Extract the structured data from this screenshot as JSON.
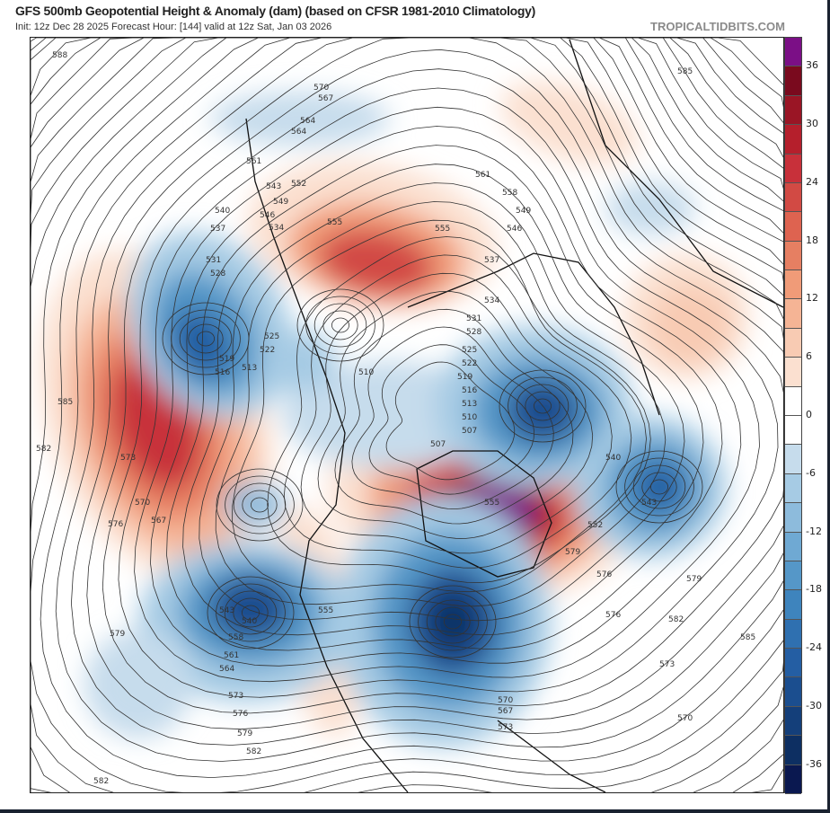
{
  "header": {
    "title": "GFS 500mb Geopotential Height & Anomaly (dam) (based on CFSR 1981-2010 Climatology)",
    "subtitle": "Init: 12z Dec 28 2025   Forecast Hour: [144]   valid at 12z Sat, Jan 03 2026",
    "brand": "TROPICALTIDBITS.COM"
  },
  "colorbar": {
    "labels": [
      "36",
      "30",
      "24",
      "18",
      "12",
      "6",
      "0",
      "-6",
      "-12",
      "-18",
      "-24",
      "-30",
      "-36"
    ],
    "colors": [
      "#7b0f86",
      "#7a0a1e",
      "#9a1525",
      "#b51f2c",
      "#c8303a",
      "#d24a44",
      "#de6350",
      "#e67f62",
      "#f09b78",
      "#f5b495",
      "#f8cbb3",
      "#fbe0d0",
      "#ffffff",
      "#ffffff",
      "#c6dcec",
      "#a6cbe4",
      "#8dbbdc",
      "#6fa9d3",
      "#5597c8",
      "#3e84bd",
      "#2f70b0",
      "#245ea3",
      "#1b4e8f",
      "#143f7a",
      "#0d2f62",
      "#0a1850"
    ]
  },
  "map": {
    "contour_labels": [
      "588",
      "585",
      "582",
      "576",
      "579",
      "573",
      "570",
      "567",
      "564",
      "561",
      "555",
      "552",
      "549",
      "546",
      "543",
      "540",
      "537",
      "534",
      "531",
      "528",
      "525",
      "522",
      "519",
      "516",
      "513",
      "510",
      "507",
      "540",
      "543",
      "555",
      "558",
      "561",
      "564",
      "573",
      "576",
      "579",
      "582",
      "585",
      "570",
      "567",
      "564",
      "561",
      "558",
      "555",
      "549",
      "546",
      "537",
      "534",
      "531",
      "528",
      "525",
      "522",
      "519",
      "516",
      "513",
      "510",
      "507",
      "552",
      "540",
      "543",
      "555",
      "567",
      "570",
      "573",
      "576",
      "579",
      "582",
      "585",
      "582",
      "579",
      "576",
      "573",
      "570"
    ]
  }
}
